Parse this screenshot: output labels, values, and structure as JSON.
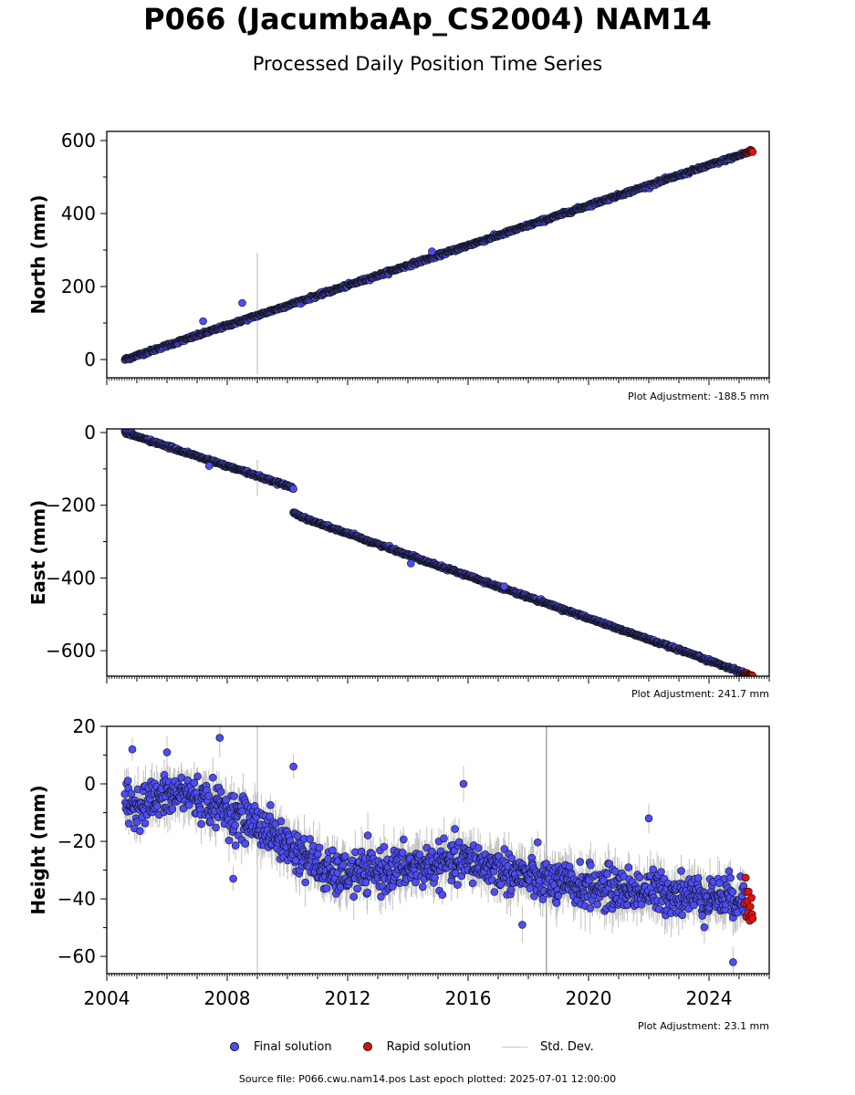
{
  "header": {
    "title": "P066 (JacumbaAp_CS2004) NAM14",
    "subtitle": "Processed Daily Position Time Series"
  },
  "legend": {
    "final": "Final solution",
    "rapid": "Rapid solution",
    "std": "Std. Dev."
  },
  "footer": {
    "source": "Source file: P066.cwu.nam14.pos  Last epoch plotted: 2025-07-01 12:00:00"
  },
  "colors": {
    "final": "#4d4df5",
    "rapid": "#e01010",
    "std": "#b4b4b4",
    "marker_edge": "#111111"
  },
  "chart_data": [
    {
      "type": "scatter",
      "ylabel": "North (mm)",
      "adjustment": "Plot Adjustment: -188.5 mm",
      "xlim": [
        2004.0,
        2026.0
      ],
      "ylim": [
        -50,
        625
      ],
      "yticks": [
        0,
        200,
        400,
        600
      ],
      "x_labels_shown": false,
      "series": [
        {
          "name": "Final solution",
          "segments": [
            {
              "x": [
                2004.6,
                2025.2
              ],
              "y": [
                0,
                565
              ]
            }
          ],
          "noise": 4,
          "stddev": 3,
          "outliers": [
            {
              "x": 2008.5,
              "y": 155
            },
            {
              "x": 2014.8,
              "y": 296
            },
            {
              "x": 2007.2,
              "y": 105
            }
          ]
        },
        {
          "name": "Rapid solution",
          "segments": [
            {
              "x": [
                2025.2,
                2025.45
              ],
              "y": [
                566,
                572
              ]
            }
          ],
          "noise": 2
        }
      ],
      "vlines": [
        {
          "x": 2009.0,
          "y": [
            -40,
            292
          ],
          "color": "#c8c8c8"
        }
      ]
    },
    {
      "type": "scatter",
      "ylabel": "East (mm)",
      "adjustment": "Plot Adjustment: 241.7 mm",
      "xlim": [
        2004.0,
        2026.0
      ],
      "ylim": [
        -670,
        10
      ],
      "yticks": [
        0,
        -200,
        -400,
        -600
      ],
      "x_labels_shown": false,
      "series": [
        {
          "name": "Final solution",
          "segments": [
            {
              "x": [
                2004.6,
                2010.2
              ],
              "y": [
                0,
                -152
              ]
            },
            {
              "x": [
                2010.2,
                2010.7
              ],
              "y": [
                -220,
                -240
              ]
            },
            {
              "x": [
                2010.7,
                2025.2
              ],
              "y": [
                -240,
                -662
              ]
            }
          ],
          "noise": 3.5,
          "stddev": 3,
          "outliers": [
            {
              "x": 2007.4,
              "y": -92
            },
            {
              "x": 2014.1,
              "y": -360
            },
            {
              "x": 2017.2,
              "y": -423
            }
          ]
        },
        {
          "name": "Rapid solution",
          "segments": [
            {
              "x": [
                2025.2,
                2025.45
              ],
              "y": [
                -663,
                -668
              ]
            }
          ],
          "noise": 2
        }
      ],
      "vlines": [
        {
          "x": 2009.0,
          "y": [
            -175,
            -75
          ],
          "color": "#c8c8c8"
        }
      ]
    },
    {
      "type": "scatter",
      "ylabel": "Height (mm)",
      "adjustment": "Plot Adjustment: 23.1 mm",
      "xlim": [
        2004.0,
        2026.0
      ],
      "ylim": [
        -66,
        20
      ],
      "yticks": [
        20,
        0,
        -20,
        -40,
        -60
      ],
      "xticks": [
        2004,
        2008,
        2012,
        2016,
        2020,
        2024
      ],
      "x_labels_shown": true,
      "series": [
        {
          "name": "Final solution",
          "segments": [
            {
              "x": [
                2004.6,
                2006.6
              ],
              "y": [
                -8,
                -3
              ]
            },
            {
              "x": [
                2006.6,
                2009.0
              ],
              "y": [
                -3,
                -14
              ]
            },
            {
              "x": [
                2009.0,
                2011.5
              ],
              "y": [
                -14,
                -32
              ]
            },
            {
              "x": [
                2011.5,
                2016.0
              ],
              "y": [
                -32,
                -27
              ]
            },
            {
              "x": [
                2016.0,
                2019.0
              ],
              "y": [
                -27,
                -35
              ]
            },
            {
              "x": [
                2019.0,
                2025.2
              ],
              "y": [
                -35,
                -40
              ]
            }
          ],
          "noise": 6.5,
          "stddev": 5,
          "outliers": [
            {
              "x": 2004.85,
              "y": 12
            },
            {
              "x": 2007.75,
              "y": 16
            },
            {
              "x": 2010.2,
              "y": 6
            },
            {
              "x": 2015.85,
              "y": 0
            },
            {
              "x": 2024.8,
              "y": -62
            },
            {
              "x": 2017.8,
              "y": -49
            },
            {
              "x": 2022.0,
              "y": -12
            },
            {
              "x": 2008.2,
              "y": -33
            },
            {
              "x": 2006.0,
              "y": 11
            }
          ]
        },
        {
          "name": "Rapid solution",
          "segments": [
            {
              "x": [
                2025.2,
                2025.45
              ],
              "y": [
                -38,
                -48
              ]
            }
          ],
          "noise": 3
        }
      ],
      "vlines": [
        {
          "x": 2009.0,
          "y": [
            -66,
            20
          ],
          "color": "#c8c8c8"
        },
        {
          "x": 2018.6,
          "y": [
            -66,
            20
          ],
          "color": "#999999"
        }
      ]
    }
  ]
}
